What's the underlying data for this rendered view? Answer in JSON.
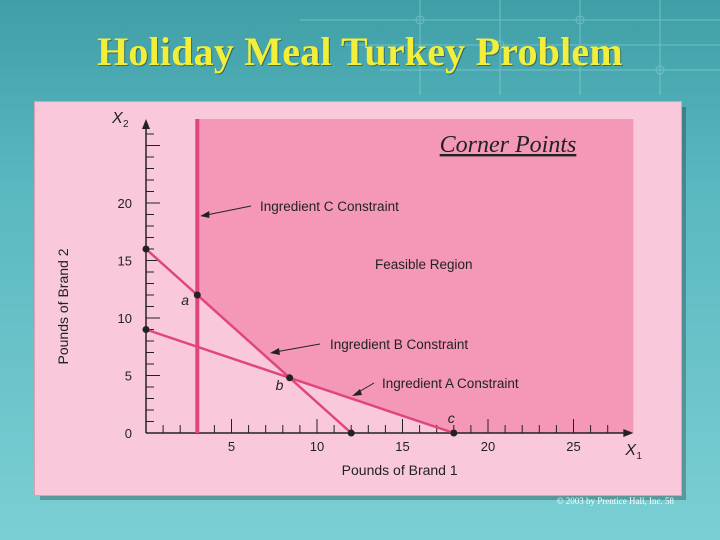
{
  "slide": {
    "title": "Holiday Meal Turkey Problem",
    "copyright": "© 2003 by Prentice Hall, Inc. 58"
  },
  "chart_data": {
    "type": "line",
    "title": "Corner Points",
    "xlabel": "Pounds of Brand 1",
    "ylabel": "Pounds of Brand 2",
    "x_axis_symbol": "X",
    "x_axis_subscript": "1",
    "y_axis_symbol": "X",
    "y_axis_subscript": "2",
    "xlim": [
      0,
      28.5
    ],
    "ylim": [
      0,
      27.3
    ],
    "x_ticks": [
      {
        "value": 5,
        "label": "5"
      },
      {
        "value": 10,
        "label": "10"
      },
      {
        "value": 15,
        "label": "15"
      },
      {
        "value": 20,
        "label": "20"
      },
      {
        "value": 25,
        "label": "25"
      }
    ],
    "y_ticks": [
      {
        "value": 0,
        "label": "0"
      },
      {
        "value": 5,
        "label": "5"
      },
      {
        "value": 10,
        "label": "10"
      },
      {
        "value": 15,
        "label": "15"
      },
      {
        "value": 20,
        "label": "20"
      }
    ],
    "constraints": [
      {
        "label": "Ingredient C Constraint",
        "points": [
          [
            3,
            0
          ],
          [
            3,
            27.3
          ]
        ]
      },
      {
        "label": "Ingredient B Constraint",
        "points": [
          [
            0,
            16
          ],
          [
            12,
            0
          ]
        ]
      },
      {
        "label": "Ingredient A Constraint",
        "points": [
          [
            0,
            9
          ],
          [
            18,
            0
          ]
        ]
      }
    ],
    "feasible_region_label": "Feasible Region",
    "corner_points": [
      {
        "label": "a",
        "x": 3,
        "y": 12
      },
      {
        "label": "b",
        "x": 8.4,
        "y": 4.8
      },
      {
        "label": "c",
        "x": 18,
        "y": 0
      }
    ],
    "intercept_points": [
      {
        "x": 0,
        "y": 16
      },
      {
        "x": 0,
        "y": 9
      },
      {
        "x": 12,
        "y": 0
      }
    ],
    "colors": {
      "feasible": "#f598b8",
      "infeasible": "#f9c9db",
      "line": "#e0457e",
      "axis": "#222222",
      "title_box": "#f598b8"
    }
  }
}
